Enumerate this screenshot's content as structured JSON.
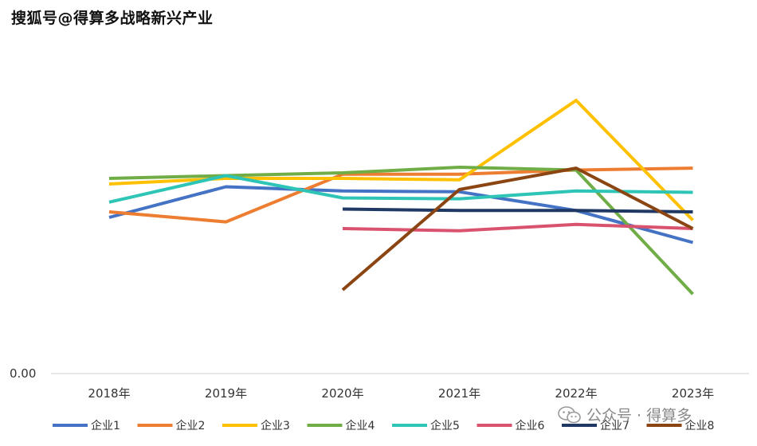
{
  "watermark_top": "搜狐号@得算多战略新兴产业",
  "watermark_bottom": "公众号 · 得算多",
  "chart_data": {
    "type": "line",
    "categories": [
      "2018年",
      "2019年",
      "2020年",
      "2021年",
      "2022年",
      "2023年"
    ],
    "y_tick_labels": [
      "0.00"
    ],
    "ylim": [
      0,
      1.0
    ],
    "grid": false,
    "legend_position": "bottom",
    "series": [
      {
        "name": "企业1",
        "color": "#4472C4",
        "values": [
          0.56,
          0.67,
          0.655,
          0.652,
          0.585,
          0.47
        ]
      },
      {
        "name": "企业2",
        "color": "#ED7D31",
        "values": [
          0.58,
          0.544,
          0.715,
          0.715,
          0.73,
          0.737
        ]
      },
      {
        "name": "企业3",
        "color": "#FFC000",
        "values": [
          0.68,
          0.7,
          0.7,
          0.695,
          0.98,
          0.55
        ]
      },
      {
        "name": "企业4",
        "color": "#70AD47",
        "values": [
          0.7,
          0.71,
          0.72,
          0.74,
          0.73,
          0.285
        ]
      },
      {
        "name": "企业5",
        "color": "#2EC4B6",
        "values": [
          0.615,
          0.71,
          0.63,
          0.627,
          0.655,
          0.65
        ]
      },
      {
        "name": "企业6",
        "color": "#D9536F",
        "values": [
          null,
          null,
          0.52,
          0.512,
          0.535,
          0.52
        ]
      },
      {
        "name": "企业7",
        "color": "#1F3864",
        "values": [
          null,
          null,
          0.59,
          0.585,
          0.585,
          0.58
        ]
      },
      {
        "name": "企业8",
        "color": "#8B4513",
        "values": [
          null,
          null,
          0.3,
          0.66,
          0.737,
          0.52
        ]
      }
    ]
  }
}
